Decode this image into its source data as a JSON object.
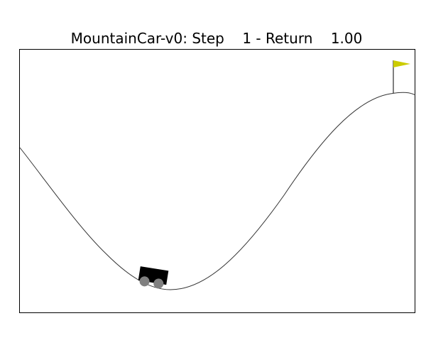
{
  "title": {
    "env_name": "MountainCar-v0",
    "step_label": "Step",
    "step_value": "1",
    "return_label": "Return",
    "return_value": "1.00"
  },
  "scene": {
    "car_color": "#000000",
    "wheel_color": "#808080",
    "flag_color": "#cccc00",
    "track_color": "#333333"
  }
}
